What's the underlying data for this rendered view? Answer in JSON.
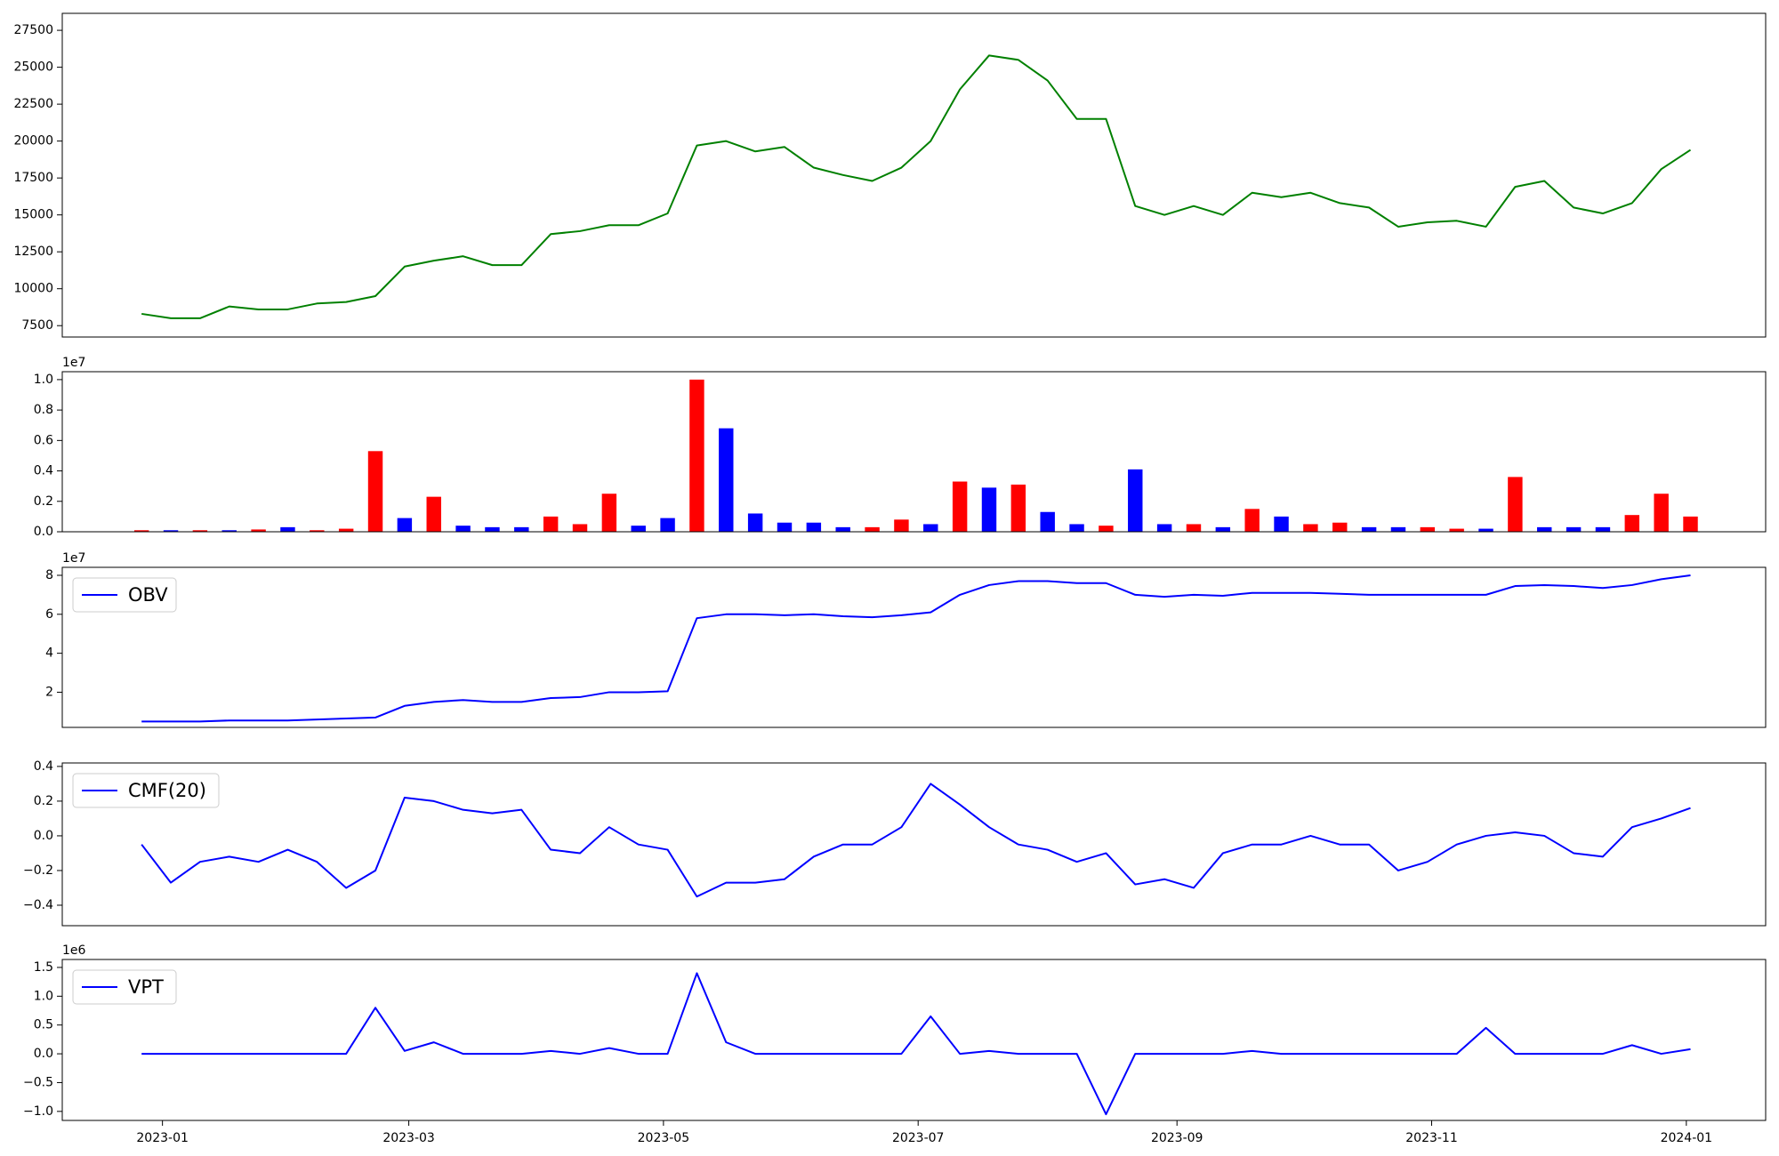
{
  "chart_data": [
    {
      "type": "line",
      "x": [
        "2022-12-27",
        "2023-01-03",
        "2023-01-10",
        "2023-01-17",
        "2023-01-24",
        "2023-01-31",
        "2023-02-07",
        "2023-02-14",
        "2023-02-21",
        "2023-02-28",
        "2023-03-07",
        "2023-03-14",
        "2023-03-21",
        "2023-03-28",
        "2023-04-04",
        "2023-04-11",
        "2023-04-18",
        "2023-04-25",
        "2023-05-02",
        "2023-05-09",
        "2023-05-16",
        "2023-05-23",
        "2023-05-30",
        "2023-06-06",
        "2023-06-13",
        "2023-06-20",
        "2023-06-27",
        "2023-07-04",
        "2023-07-11",
        "2023-07-18",
        "2023-07-25",
        "2023-08-01",
        "2023-08-08",
        "2023-08-15",
        "2023-08-22",
        "2023-08-29",
        "2023-09-05",
        "2023-09-12",
        "2023-09-19",
        "2023-09-26",
        "2023-10-03",
        "2023-10-10",
        "2023-10-17",
        "2023-10-24",
        "2023-10-31",
        "2023-11-07",
        "2023-11-14",
        "2023-11-21",
        "2023-11-28",
        "2023-12-05",
        "2023-12-12",
        "2023-12-19",
        "2023-12-26",
        "2024-01-02"
      ],
      "series": [
        {
          "color": "#008000",
          "values": [
            8300,
            8000,
            8000,
            8800,
            8600,
            8600,
            9000,
            9100,
            9500,
            11500,
            11900,
            12200,
            11600,
            11600,
            13700,
            13900,
            14300,
            14300,
            15100,
            19700,
            20000,
            19300,
            19600,
            18200,
            17700,
            17300,
            18200,
            20000,
            23500,
            25800,
            25500,
            24100,
            21500,
            21500,
            15600,
            15000,
            15600,
            15000,
            16500,
            16200,
            16500,
            15800,
            15500,
            14200,
            14500,
            14600,
            14200,
            16900,
            17300,
            15500,
            15100,
            15800,
            18100,
            19400
          ]
        }
      ],
      "xlim": [
        "2022-12-08",
        "2024-01-20"
      ],
      "ylim": [
        6730,
        28650
      ],
      "yticks": [
        7500,
        10000,
        12500,
        15000,
        17500,
        20000,
        22500,
        25000,
        27500
      ]
    },
    {
      "type": "bar",
      "x": [
        "2022-12-27",
        "2023-01-03",
        "2023-01-10",
        "2023-01-17",
        "2023-01-24",
        "2023-01-31",
        "2023-02-07",
        "2023-02-14",
        "2023-02-21",
        "2023-02-28",
        "2023-03-07",
        "2023-03-14",
        "2023-03-21",
        "2023-03-28",
        "2023-04-04",
        "2023-04-11",
        "2023-04-18",
        "2023-04-25",
        "2023-05-02",
        "2023-05-09",
        "2023-05-16",
        "2023-05-23",
        "2023-05-30",
        "2023-06-06",
        "2023-06-13",
        "2023-06-20",
        "2023-06-27",
        "2023-07-04",
        "2023-07-11",
        "2023-07-18",
        "2023-07-25",
        "2023-08-01",
        "2023-08-08",
        "2023-08-15",
        "2023-08-22",
        "2023-08-29",
        "2023-09-05",
        "2023-09-12",
        "2023-09-19",
        "2023-09-26",
        "2023-10-03",
        "2023-10-10",
        "2023-10-17",
        "2023-10-24",
        "2023-10-31",
        "2023-11-07",
        "2023-11-14",
        "2023-11-21",
        "2023-11-28",
        "2023-12-05",
        "2023-12-12",
        "2023-12-19",
        "2023-12-26",
        "2024-01-02"
      ],
      "values": [
        100000,
        100000,
        100000,
        100000,
        150000,
        300000,
        100000,
        200000,
        5300000,
        900000,
        2300000,
        400000,
        300000,
        300000,
        1000000,
        500000,
        2500000,
        400000,
        900000,
        10000000,
        6800000,
        1200000,
        600000,
        600000,
        300000,
        300000,
        800000,
        500000,
        3300000,
        2900000,
        3100000,
        1300000,
        500000,
        400000,
        4100000,
        500000,
        500000,
        300000,
        1500000,
        1000000,
        500000,
        600000,
        300000,
        300000,
        300000,
        200000,
        200000,
        3600000,
        300000,
        300000,
        300000,
        1100000,
        2500000,
        1000000
      ],
      "colors": [
        "#ff0000",
        "#0000ff",
        "#ff0000",
        "#0000ff",
        "#ff0000",
        "#0000ff",
        "#ff0000",
        "#ff0000",
        "#ff0000",
        "#0000ff",
        "#ff0000",
        "#0000ff",
        "#0000ff",
        "#0000ff",
        "#ff0000",
        "#ff0000",
        "#ff0000",
        "#0000ff",
        "#0000ff",
        "#ff0000",
        "#0000ff",
        "#0000ff",
        "#0000ff",
        "#0000ff",
        "#0000ff",
        "#ff0000",
        "#ff0000",
        "#0000ff",
        "#ff0000",
        "#0000ff",
        "#ff0000",
        "#0000ff",
        "#0000ff",
        "#ff0000",
        "#0000ff",
        "#0000ff",
        "#ff0000",
        "#0000ff",
        "#ff0000",
        "#0000ff",
        "#ff0000",
        "#ff0000",
        "#0000ff",
        "#0000ff",
        "#ff0000",
        "#ff0000",
        "#0000ff",
        "#ff0000",
        "#0000ff",
        "#0000ff",
        "#0000ff",
        "#ff0000",
        "#ff0000",
        "#ff0000"
      ],
      "offset_text": "1e7",
      "xlim": [
        "2022-12-08",
        "2024-01-20"
      ],
      "ylim": [
        0,
        10520000
      ],
      "yticks": [
        {
          "value": 0,
          "label": "0.0"
        },
        {
          "value": 2000000,
          "label": "0.2"
        },
        {
          "value": 4000000,
          "label": "0.4"
        },
        {
          "value": 6000000,
          "label": "0.6"
        },
        {
          "value": 8000000,
          "label": "0.8"
        },
        {
          "value": 10000000,
          "label": "1.0"
        }
      ]
    },
    {
      "type": "line",
      "x": [
        "2022-12-27",
        "2023-01-03",
        "2023-01-10",
        "2023-01-17",
        "2023-01-24",
        "2023-01-31",
        "2023-02-07",
        "2023-02-14",
        "2023-02-21",
        "2023-02-28",
        "2023-03-07",
        "2023-03-14",
        "2023-03-21",
        "2023-03-28",
        "2023-04-04",
        "2023-04-11",
        "2023-04-18",
        "2023-04-25",
        "2023-05-02",
        "2023-05-09",
        "2023-05-16",
        "2023-05-23",
        "2023-05-30",
        "2023-06-06",
        "2023-06-13",
        "2023-06-20",
        "2023-06-27",
        "2023-07-04",
        "2023-07-11",
        "2023-07-18",
        "2023-07-25",
        "2023-08-01",
        "2023-08-08",
        "2023-08-15",
        "2023-08-22",
        "2023-08-29",
        "2023-09-05",
        "2023-09-12",
        "2023-09-19",
        "2023-09-26",
        "2023-10-03",
        "2023-10-10",
        "2023-10-17",
        "2023-10-24",
        "2023-10-31",
        "2023-11-07",
        "2023-11-14",
        "2023-11-21",
        "2023-11-28",
        "2023-12-05",
        "2023-12-12",
        "2023-12-19",
        "2023-12-26",
        "2024-01-02"
      ],
      "series": [
        {
          "name": "OBV",
          "color": "#0000ff",
          "values": [
            5000000,
            5000000,
            5000000,
            5500000,
            5500000,
            5500000,
            6000000,
            6500000,
            7000000,
            13000000,
            15000000,
            16000000,
            15000000,
            15000000,
            17000000,
            17500000,
            20000000,
            20000000,
            20500000,
            58000000,
            60000000,
            60000000,
            59500000,
            60000000,
            59000000,
            58500000,
            59500000,
            61000000,
            70000000,
            75000000,
            77000000,
            77000000,
            76000000,
            76000000,
            70000000,
            69000000,
            70000000,
            69500000,
            71000000,
            71000000,
            71000000,
            70500000,
            70000000,
            70000000,
            70000000,
            70000000,
            70000000,
            74500000,
            75000000,
            74500000,
            73500000,
            75000000,
            78000000,
            80000000
          ]
        }
      ],
      "offset_text": "1e7",
      "xlim": [
        "2022-12-08",
        "2024-01-20"
      ],
      "ylim": [
        1950000,
        84100000
      ],
      "yticks": [
        {
          "value": 20000000,
          "label": "2"
        },
        {
          "value": 40000000,
          "label": "4"
        },
        {
          "value": 60000000,
          "label": "6"
        },
        {
          "value": 80000000,
          "label": "8"
        }
      ]
    },
    {
      "type": "line",
      "x": [
        "2022-12-27",
        "2023-01-03",
        "2023-01-10",
        "2023-01-17",
        "2023-01-24",
        "2023-01-31",
        "2023-02-07",
        "2023-02-14",
        "2023-02-21",
        "2023-02-28",
        "2023-03-07",
        "2023-03-14",
        "2023-03-21",
        "2023-03-28",
        "2023-04-04",
        "2023-04-11",
        "2023-04-18",
        "2023-04-25",
        "2023-05-02",
        "2023-05-09",
        "2023-05-16",
        "2023-05-23",
        "2023-05-30",
        "2023-06-06",
        "2023-06-13",
        "2023-06-20",
        "2023-06-27",
        "2023-07-04",
        "2023-07-11",
        "2023-07-18",
        "2023-07-25",
        "2023-08-01",
        "2023-08-08",
        "2023-08-15",
        "2023-08-22",
        "2023-08-29",
        "2023-09-05",
        "2023-09-12",
        "2023-09-19",
        "2023-09-26",
        "2023-10-03",
        "2023-10-10",
        "2023-10-17",
        "2023-10-24",
        "2023-10-31",
        "2023-11-07",
        "2023-11-14",
        "2023-11-21",
        "2023-11-28",
        "2023-12-05",
        "2023-12-12",
        "2023-12-19",
        "2023-12-26",
        "2024-01-02"
      ],
      "series": [
        {
          "name": "CMF(20)",
          "color": "#0000ff",
          "values": [
            -0.05,
            -0.27,
            -0.15,
            -0.12,
            -0.15,
            -0.08,
            -0.15,
            -0.3,
            -0.2,
            0.22,
            0.2,
            0.15,
            0.13,
            0.15,
            -0.08,
            -0.1,
            0.05,
            -0.05,
            -0.08,
            -0.35,
            -0.27,
            -0.27,
            -0.25,
            -0.12,
            -0.05,
            -0.05,
            0.05,
            0.3,
            0.18,
            0.05,
            -0.05,
            -0.08,
            -0.15,
            -0.1,
            -0.28,
            -0.25,
            -0.3,
            -0.1,
            -0.05,
            -0.05,
            0.0,
            -0.05,
            -0.05,
            -0.2,
            -0.15,
            -0.05,
            0.0,
            0.02,
            0.0,
            -0.1,
            -0.12,
            0.05,
            0.1,
            0.16
          ]
        }
      ],
      "xlim": [
        "2022-12-08",
        "2024-01-20"
      ],
      "ylim": [
        -0.518,
        0.42
      ],
      "yticks": [
        {
          "value": -0.4,
          "label": "−0.4"
        },
        {
          "value": -0.2,
          "label": "−0.2"
        },
        {
          "value": 0,
          "label": "0.0"
        },
        0.2,
        0.4
      ]
    },
    {
      "type": "line",
      "x": [
        "2022-12-27",
        "2023-01-03",
        "2023-01-10",
        "2023-01-17",
        "2023-01-24",
        "2023-01-31",
        "2023-02-07",
        "2023-02-14",
        "2023-02-21",
        "2023-02-28",
        "2023-03-07",
        "2023-03-14",
        "2023-03-21",
        "2023-03-28",
        "2023-04-04",
        "2023-04-11",
        "2023-04-18",
        "2023-04-25",
        "2023-05-02",
        "2023-05-09",
        "2023-05-16",
        "2023-05-23",
        "2023-05-30",
        "2023-06-06",
        "2023-06-13",
        "2023-06-20",
        "2023-06-27",
        "2023-07-04",
        "2023-07-11",
        "2023-07-18",
        "2023-07-25",
        "2023-08-01",
        "2023-08-08",
        "2023-08-15",
        "2023-08-22",
        "2023-08-29",
        "2023-09-05",
        "2023-09-12",
        "2023-09-19",
        "2023-09-26",
        "2023-10-03",
        "2023-10-10",
        "2023-10-17",
        "2023-10-24",
        "2023-10-31",
        "2023-11-07",
        "2023-11-14",
        "2023-11-21",
        "2023-11-28",
        "2023-12-05",
        "2023-12-12",
        "2023-12-19",
        "2023-12-26",
        "2024-01-02"
      ],
      "series": [
        {
          "name": "VPT",
          "color": "#0000ff",
          "values": [
            0,
            0,
            0,
            0,
            0,
            0,
            0,
            0,
            800000,
            50000,
            200000,
            0,
            0,
            0,
            50000,
            0,
            100000,
            0,
            0,
            1400000,
            200000,
            0,
            0,
            0,
            0,
            0,
            0,
            650000,
            0,
            50000,
            0,
            0,
            0,
            -1050000,
            0,
            0,
            0,
            0,
            50000,
            0,
            0,
            0,
            0,
            0,
            0,
            0,
            450000,
            0,
            0,
            0,
            0,
            150000,
            0,
            80000
          ]
        }
      ],
      "offset_text": "1e6",
      "xlim": [
        "2022-12-08",
        "2024-01-20"
      ],
      "ylim": [
        -1157000,
        1638000
      ],
      "yticks": [
        {
          "value": -1000000,
          "label": "−1.0"
        },
        {
          "value": -500000,
          "label": "−0.5"
        },
        {
          "value": 0,
          "label": "0.0"
        },
        {
          "value": 500000,
          "label": "0.5"
        },
        {
          "value": 1000000,
          "label": "1.0"
        },
        {
          "value": 1500000,
          "label": "1.5"
        }
      ],
      "xticks": [
        "2023-01",
        "2023-03",
        "2023-05",
        "2023-07",
        "2023-09",
        "2023-11",
        "2024-01"
      ]
    }
  ]
}
